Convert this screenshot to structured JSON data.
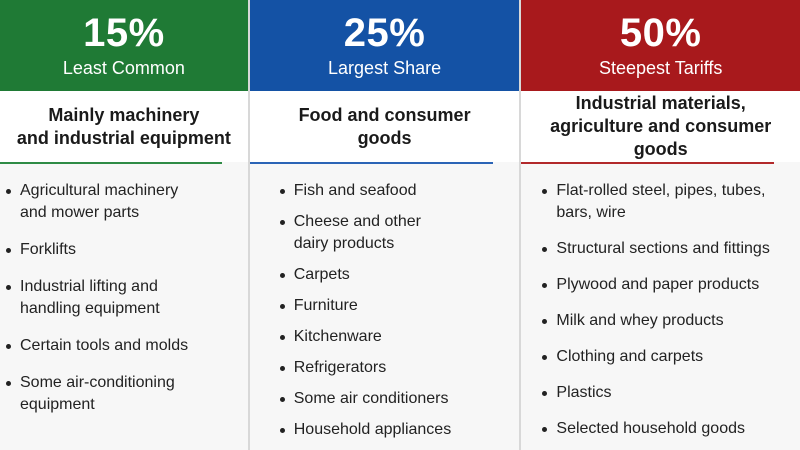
{
  "columns": [
    {
      "percent": "15%",
      "tagline": "Least Common",
      "description": "Mainly machinery\nand industrial equipment",
      "color": "#1f7a35",
      "items": [
        "Agricultural machinery\nand mower parts",
        "Forklifts",
        "Industrial lifting and\nhandling equipment",
        "Certain tools and molds",
        "Some air-conditioning\nequipment"
      ]
    },
    {
      "percent": "25%",
      "tagline": "Largest Share",
      "description": "Food and consumer\ngoods",
      "color": "#1452a5",
      "items": [
        "Fish and seafood",
        "Cheese and other\ndairy products",
        "Carpets",
        "Furniture",
        "Kitchenware",
        "Refrigerators",
        "Some air conditioners",
        "Household appliances"
      ]
    },
    {
      "percent": "50%",
      "tagline": "Steepest Tariffs",
      "description": "Industrial materials,\nagriculture and consumer goods",
      "color": "#a8191c",
      "items": [
        "Flat-rolled steel, pipes, tubes,\nbars, wire",
        "Structural sections and fittings",
        "Plywood and paper products",
        "Milk and whey products",
        "Clothing and carpets",
        "Plastics",
        "Selected household goods"
      ]
    }
  ]
}
